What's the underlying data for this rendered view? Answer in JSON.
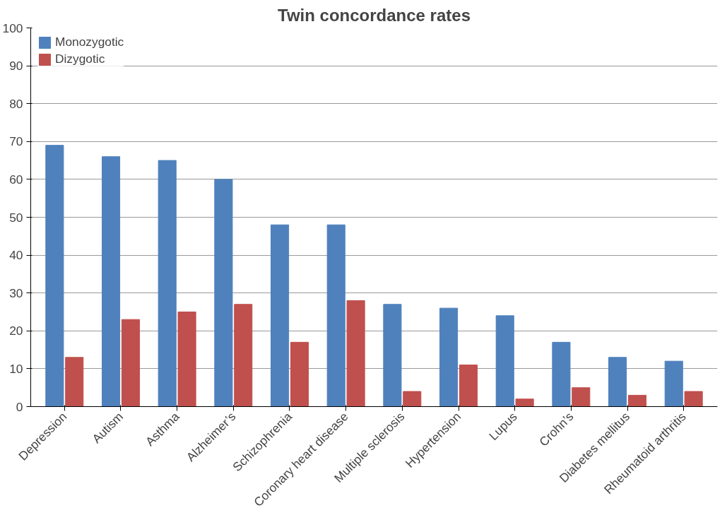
{
  "chart_data": {
    "type": "bar",
    "title": "Twin concordance rates",
    "categories": [
      "Depression",
      "Autism",
      "Asthma",
      "Alzheimer’s",
      "Schizophrenia",
      "Coronary heart disease",
      "Multiple sclerosis",
      "Hypertension",
      "Lupus",
      "Crohn’s",
      "Diabetes mellitus",
      "Rheumatoid arthritis"
    ],
    "series": [
      {
        "name": "Monozygotic",
        "color": "#4f81bd",
        "values": [
          69,
          66,
          65,
          60,
          48,
          48,
          27,
          26,
          24,
          17,
          13,
          12
        ]
      },
      {
        "name": "Dizygotic",
        "color": "#c0504d",
        "values": [
          13,
          23,
          25,
          27,
          17,
          28,
          4,
          11,
          2,
          5,
          3,
          4
        ]
      }
    ],
    "ylim": [
      0,
      100
    ],
    "yticks": [
      0,
      10,
      20,
      30,
      40,
      50,
      60,
      70,
      80,
      90,
      100
    ],
    "grid": "y",
    "legend": "top left"
  }
}
